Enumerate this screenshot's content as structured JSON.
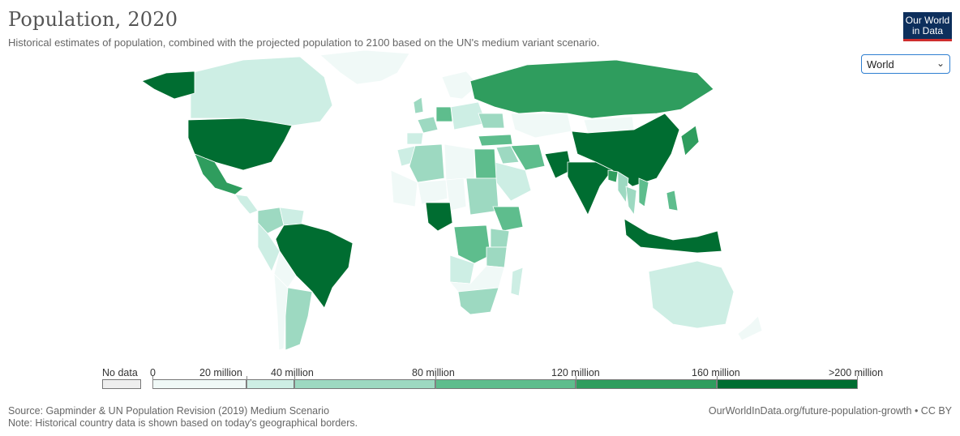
{
  "header": {
    "title": "Population, 2020",
    "subtitle": "Historical estimates of population, combined with the projected population to 2100 based on the UN's medium variant scenario.",
    "logo_line1": "Our World",
    "logo_line2": "in Data"
  },
  "controls": {
    "region_value": "World"
  },
  "legend": {
    "no_data": "No data",
    "labels": [
      "0",
      "20 million",
      "40 million",
      "80 million",
      "120 million",
      "160 million",
      ">200 million"
    ]
  },
  "colors": {
    "no_data": "#eeeeee",
    "bins": [
      "#f0f9f7",
      "#cdeee4",
      "#9dd9c1",
      "#5ebd8d",
      "#2f9d5e",
      "#006d31"
    ],
    "ocean": "#ffffff",
    "border": "#ffffff"
  },
  "map_data": {
    "indicator": "Population",
    "year": "2020",
    "countries": [
      {
        "name": "China",
        "bin": 5
      },
      {
        "name": "India",
        "bin": 5
      },
      {
        "name": "United States",
        "bin": 5
      },
      {
        "name": "Indonesia",
        "bin": 5
      },
      {
        "name": "Pakistan",
        "bin": 5
      },
      {
        "name": "Brazil",
        "bin": 5
      },
      {
        "name": "Nigeria",
        "bin": 5
      },
      {
        "name": "Bangladesh",
        "bin": 4
      },
      {
        "name": "Russia",
        "bin": 4
      },
      {
        "name": "Mexico",
        "bin": 4
      },
      {
        "name": "Japan",
        "bin": 4
      },
      {
        "name": "Ethiopia",
        "bin": 3
      },
      {
        "name": "Philippines",
        "bin": 3
      },
      {
        "name": "Egypt",
        "bin": 3
      },
      {
        "name": "DR Congo",
        "bin": 3
      },
      {
        "name": "Vietnam",
        "bin": 3
      },
      {
        "name": "Iran",
        "bin": 3
      },
      {
        "name": "Turkey",
        "bin": 3
      },
      {
        "name": "Germany",
        "bin": 3
      },
      {
        "name": "Thailand",
        "bin": 2
      },
      {
        "name": "France",
        "bin": 2
      },
      {
        "name": "United Kingdom",
        "bin": 2
      },
      {
        "name": "Tanzania",
        "bin": 2
      },
      {
        "name": "South Africa",
        "bin": 2
      },
      {
        "name": "Myanmar",
        "bin": 2
      },
      {
        "name": "Kenya",
        "bin": 2
      },
      {
        "name": "Colombia",
        "bin": 2
      },
      {
        "name": "Argentina",
        "bin": 2
      },
      {
        "name": "Sudan",
        "bin": 2
      },
      {
        "name": "Algeria",
        "bin": 2
      },
      {
        "name": "Ukraine",
        "bin": 2
      },
      {
        "name": "Iraq",
        "bin": 2
      },
      {
        "name": "Canada",
        "bin": 1
      },
      {
        "name": "Australia",
        "bin": 1
      },
      {
        "name": "Kazakhstan",
        "bin": 0
      },
      {
        "name": "Greenland",
        "bin": 0
      },
      {
        "name": "Mongolia",
        "bin": 0
      },
      {
        "name": "Chile",
        "bin": 0
      },
      {
        "name": "Libya",
        "bin": 0
      },
      {
        "name": "Mali",
        "bin": 0
      },
      {
        "name": "Niger",
        "bin": 0
      },
      {
        "name": "Saudi Arabia",
        "bin": 1
      }
    ]
  },
  "footer": {
    "source": "Source: Gapminder & UN Population Revision (2019) Medium Scenario",
    "note": "Note: Historical country data is shown based on today's geographical borders.",
    "url": "OurWorldInData.org/future-population-growth • CC BY"
  }
}
